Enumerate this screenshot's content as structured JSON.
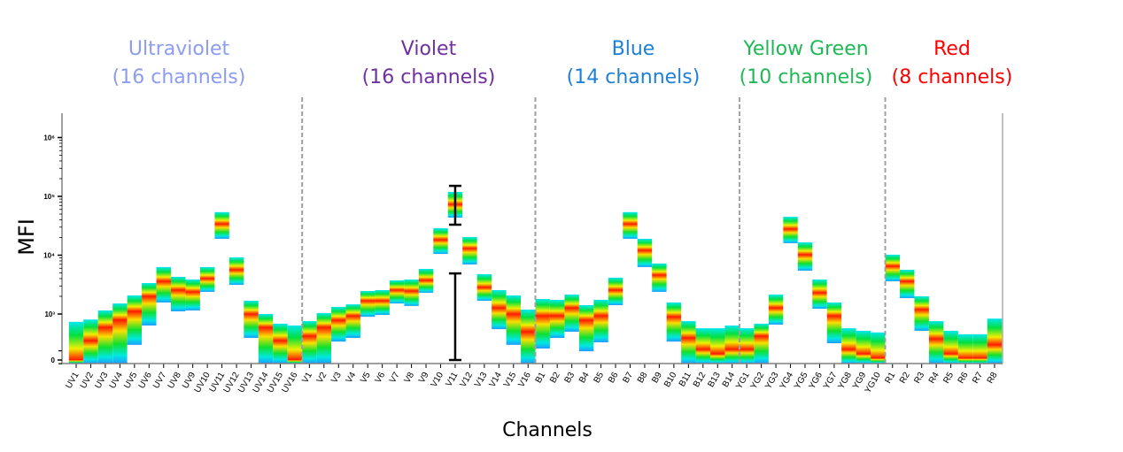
{
  "chart_data": {
    "type": "heatmap",
    "title": "",
    "xlabel": "Channels",
    "ylabel": "MFI",
    "yscale": "biexponential",
    "yticks": [
      {
        "value": 0,
        "label": "0"
      },
      {
        "value": 1000,
        "label": "10³"
      },
      {
        "value": 10000,
        "label": "10⁴"
      },
      {
        "value": 100000,
        "label": "10⁵"
      },
      {
        "value": 1000000,
        "label": "10⁶"
      }
    ],
    "ylim": [
      -80,
      2000000
    ],
    "groups": [
      {
        "name": "Ultraviolet",
        "subtitle": "(16 channels)",
        "color": "#8c9cf0"
      },
      {
        "name": "Violet",
        "subtitle": "(16 channels)",
        "color": "#7030a0"
      },
      {
        "name": "Blue",
        "subtitle": "(14 channels)",
        "color": "#1e7fd6"
      },
      {
        "name": "Yellow Green",
        "subtitle": "(10 channels)",
        "color": "#1db954"
      },
      {
        "name": "Red",
        "subtitle": "(8 channels)",
        "color": "#ff0000"
      }
    ],
    "channels": [
      {
        "name": "UV1",
        "group": 0,
        "low": -80,
        "peak": 0,
        "high": 830
      },
      {
        "name": "UV2",
        "group": 0,
        "low": -80,
        "peak": 420,
        "high": 880
      },
      {
        "name": "UV3",
        "group": 0,
        "low": -80,
        "peak": 710,
        "high": 1150
      },
      {
        "name": "UV4",
        "group": 0,
        "low": -80,
        "peak": 870,
        "high": 1510
      },
      {
        "name": "UV5",
        "group": 0,
        "low": 330,
        "peak": 1110,
        "high": 2070
      },
      {
        "name": "UV6",
        "group": 0,
        "low": 750,
        "peak": 2000,
        "high": 3360
      },
      {
        "name": "UV7",
        "group": 0,
        "low": 1570,
        "peak": 3600,
        "high": 6280
      },
      {
        "name": "UV8",
        "group": 0,
        "low": 1110,
        "peak": 2550,
        "high": 4280
      },
      {
        "name": "UV9",
        "group": 0,
        "low": 1150,
        "peak": 2380,
        "high": 3860
      },
      {
        "name": "UV10",
        "group": 0,
        "low": 2380,
        "peak": 4000,
        "high": 6280
      },
      {
        "name": "UV11",
        "group": 0,
        "low": 19000,
        "peak": 34000,
        "high": 54000
      },
      {
        "name": "UV12",
        "group": 0,
        "low": 3130,
        "peak": 5650,
        "high": 9200
      },
      {
        "name": "UV13",
        "group": 0,
        "low": 480,
        "peak": 1000,
        "high": 1680
      },
      {
        "name": "UV14",
        "group": 0,
        "low": -80,
        "peak": 710,
        "high": 1000
      },
      {
        "name": "UV15",
        "group": 0,
        "low": -80,
        "peak": 420,
        "high": 790
      },
      {
        "name": "UV16",
        "group": 0,
        "low": -80,
        "peak": 0,
        "high": 750
      },
      {
        "name": "V1",
        "group": 1,
        "low": -80,
        "peak": 520,
        "high": 845
      },
      {
        "name": "V2",
        "group": 1,
        "low": -80,
        "peak": 710,
        "high": 1040
      },
      {
        "name": "V3",
        "group": 1,
        "low": 400,
        "peak": 865,
        "high": 1320
      },
      {
        "name": "V4",
        "group": 1,
        "low": 480,
        "peak": 960,
        "high": 1460
      },
      {
        "name": "V5",
        "group": 1,
        "low": 940,
        "peak": 1680,
        "high": 2460
      },
      {
        "name": "V6",
        "group": 1,
        "low": 980,
        "peak": 1680,
        "high": 2550
      },
      {
        "name": "V7",
        "group": 1,
        "low": 1510,
        "peak": 2550,
        "high": 3730
      },
      {
        "name": "V8",
        "group": 1,
        "low": 1370,
        "peak": 2460,
        "high": 3860
      },
      {
        "name": "V9",
        "group": 1,
        "low": 2300,
        "peak": 3730,
        "high": 5850
      },
      {
        "name": "V10",
        "group": 1,
        "low": 10500,
        "peak": 18300,
        "high": 28700
      },
      {
        "name": "V11",
        "group": 1,
        "low": 43500,
        "peak": 73000,
        "high": 119000
      },
      {
        "name": "V12",
        "group": 1,
        "low": 6960,
        "peak": 13000,
        "high": 20400
      },
      {
        "name": "V13",
        "group": 1,
        "low": 1680,
        "peak": 2830,
        "high": 4750
      },
      {
        "name": "V14",
        "group": 1,
        "low": 670,
        "peak": 1270,
        "high": 2550
      },
      {
        "name": "V15",
        "group": 1,
        "low": 330,
        "peak": 1000,
        "high": 2070
      },
      {
        "name": "V16",
        "group": 1,
        "low": -80,
        "peak": 615,
        "high": 1190
      },
      {
        "name": "B1",
        "group": 2,
        "low": 250,
        "peak": 960,
        "high": 1800
      },
      {
        "name": "B2",
        "group": 2,
        "low": 480,
        "peak": 960,
        "high": 1740
      },
      {
        "name": "B3",
        "group": 2,
        "low": 615,
        "peak": 1270,
        "high": 2140
      },
      {
        "name": "B4",
        "group": 2,
        "low": 190,
        "peak": 865,
        "high": 1414
      },
      {
        "name": "B5",
        "group": 2,
        "low": 385,
        "peak": 960,
        "high": 1740
      },
      {
        "name": "B6",
        "group": 2,
        "low": 1414,
        "peak": 2550,
        "high": 4140
      },
      {
        "name": "B7",
        "group": 2,
        "low": 19000,
        "peak": 34000,
        "high": 54000
      },
      {
        "name": "B8",
        "group": 2,
        "low": 6280,
        "peak": 12100,
        "high": 19000
      },
      {
        "name": "B9",
        "group": 2,
        "low": 2380,
        "peak": 4590,
        "high": 7200
      },
      {
        "name": "B10",
        "group": 2,
        "low": 400,
        "peak": 940,
        "high": 1570
      },
      {
        "name": "B11",
        "group": 2,
        "low": -80,
        "peak": 480,
        "high": 845
      },
      {
        "name": "B12",
        "group": 2,
        "low": -80,
        "peak": 230,
        "high": 690
      },
      {
        "name": "B13",
        "group": 2,
        "low": -80,
        "peak": 135,
        "high": 690
      },
      {
        "name": "B14",
        "group": 2,
        "low": -80,
        "peak": 230,
        "high": 750
      },
      {
        "name": "YG1",
        "group": 3,
        "low": -80,
        "peak": 230,
        "high": 690
      },
      {
        "name": "YG2",
        "group": 3,
        "low": -80,
        "peak": 520,
        "high": 790
      },
      {
        "name": "YG3",
        "group": 3,
        "low": 770,
        "peak": 1270,
        "high": 2140
      },
      {
        "name": "YG4",
        "group": 3,
        "low": 16000,
        "peak": 27800,
        "high": 45000
      },
      {
        "name": "YG5",
        "group": 3,
        "low": 5450,
        "peak": 10200,
        "high": 16500
      },
      {
        "name": "YG6",
        "group": 3,
        "low": 1230,
        "peak": 2300,
        "high": 3860
      },
      {
        "name": "YG7",
        "group": 3,
        "low": 365,
        "peak": 960,
        "high": 1570
      },
      {
        "name": "YG8",
        "group": 3,
        "low": -80,
        "peak": 230,
        "high": 690
      },
      {
        "name": "YG9",
        "group": 3,
        "low": -80,
        "peak": 135,
        "high": 635
      },
      {
        "name": "YG10",
        "group": 3,
        "low": -80,
        "peak": 40,
        "high": 600
      },
      {
        "name": "R1",
        "group": 4,
        "low": 3600,
        "peak": 6500,
        "high": 10200
      },
      {
        "name": "R2",
        "group": 4,
        "low": 1860,
        "peak": 3600,
        "high": 5650
      },
      {
        "name": "R3",
        "group": 4,
        "low": 635,
        "peak": 1190,
        "high": 2000
      },
      {
        "name": "R4",
        "group": 4,
        "low": -80,
        "peak": 460,
        "high": 845
      },
      {
        "name": "R5",
        "group": 4,
        "low": -80,
        "peak": 135,
        "high": 635
      },
      {
        "name": "R6",
        "group": 4,
        "low": -80,
        "peak": 40,
        "high": 560
      },
      {
        "name": "R7",
        "group": 4,
        "low": -80,
        "peak": 40,
        "high": 560
      },
      {
        "name": "R8",
        "group": 4,
        "low": -80,
        "peak": 330,
        "high": 900
      }
    ],
    "annotations": [
      {
        "type": "error-bar",
        "channel": "V11",
        "low": 33000,
        "high": 151000
      },
      {
        "type": "error-bar",
        "channel": "V11",
        "low": 0,
        "high": 4900
      }
    ],
    "grid": false,
    "legend": "none"
  }
}
